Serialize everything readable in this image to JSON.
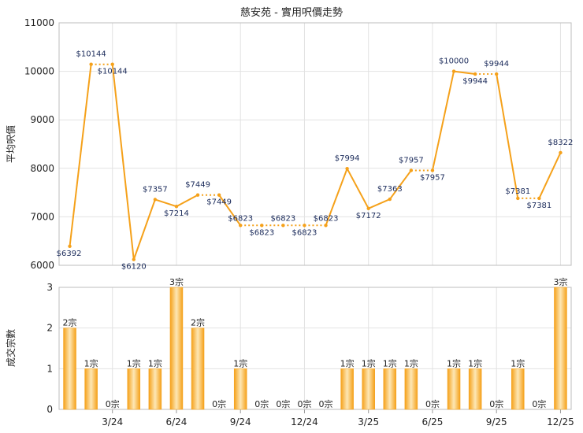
{
  "title": "慈安苑 - 實用呎價走勢",
  "colors": {
    "line": "#f5a11a",
    "bar": "#f5a11a",
    "bar_light": "#fde7b5",
    "label": "#1a2a5a"
  },
  "chart_data": [
    {
      "type": "line",
      "ylabel": "平均呎價",
      "ylim": [
        6000,
        11000
      ],
      "yticks": [
        6000,
        7000,
        8000,
        9000,
        10000,
        11000
      ],
      "x_index": [
        0,
        1,
        2,
        3,
        4,
        5,
        6,
        7,
        8,
        9,
        10,
        11,
        12,
        13,
        14,
        15,
        16,
        17,
        18,
        19,
        20,
        21,
        22,
        23,
        24
      ],
      "values": [
        6392,
        10144,
        10144,
        6120,
        7357,
        7214,
        7449,
        7449,
        6823,
        6823,
        6823,
        6823,
        6823,
        7994,
        7172,
        7363,
        7957,
        7957,
        10000,
        9944,
        9944,
        7381,
        7381,
        8322,
        null
      ],
      "point_labels": [
        "$6392",
        "$10144",
        "$10144",
        "$6120",
        "$7357",
        "$7214",
        "$7449",
        "$7449",
        "$6823",
        "$6823",
        "$6823",
        "$6823",
        "$6823",
        "$7994",
        "$7172",
        "$7363",
        "$7957",
        "$7957",
        "$10000",
        "$9944",
        "$9944",
        "$7381",
        "$7381",
        "$8322",
        ""
      ],
      "dotted_segments": [
        1,
        6,
        8,
        9,
        10,
        11,
        16,
        19,
        21
      ]
    },
    {
      "type": "bar",
      "ylabel": "成交宗數",
      "ylim": [
        0,
        3
      ],
      "yticks": [
        0,
        1,
        2,
        3
      ],
      "values": [
        2,
        1,
        0,
        1,
        1,
        3,
        2,
        0,
        1,
        0,
        0,
        0,
        0,
        1,
        1,
        1,
        1,
        0,
        1,
        1,
        0,
        1,
        0,
        3
      ],
      "bar_labels": [
        "2宗",
        "1宗",
        "0宗",
        "1宗",
        "1宗",
        "3宗",
        "2宗",
        "0宗",
        "1宗",
        "0宗",
        "0宗",
        "0宗",
        "0宗",
        "1宗",
        "1宗",
        "1宗",
        "1宗",
        "0宗",
        "1宗",
        "1宗",
        "0宗",
        "1宗",
        "0宗",
        "3宗"
      ],
      "x_tick_labels": [
        "3/24",
        "6/24",
        "9/24",
        "12/24",
        "3/25",
        "6/25",
        "9/25",
        "12/25"
      ],
      "x_tick_index": [
        2,
        5,
        8,
        11,
        14,
        17,
        20,
        23
      ]
    }
  ]
}
